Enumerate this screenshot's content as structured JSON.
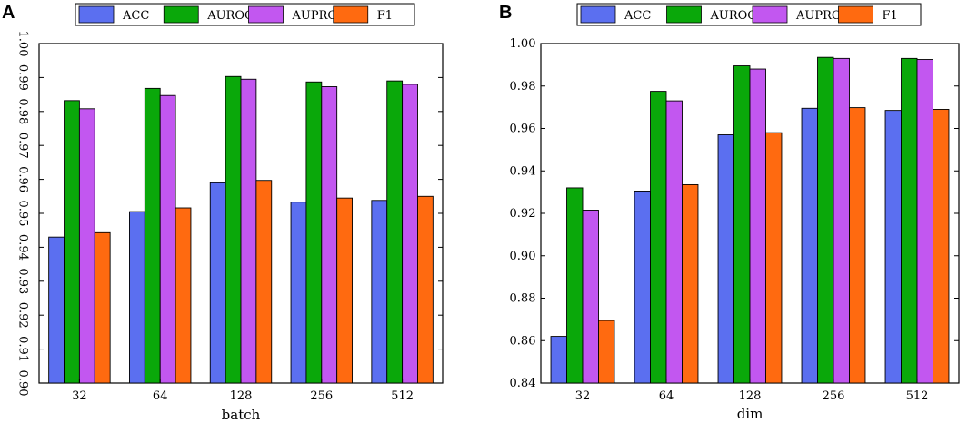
{
  "chart_data": [
    {
      "type": "bar",
      "panel": "A",
      "categories": [
        "32",
        "64",
        "128",
        "256",
        "512"
      ],
      "series": [
        {
          "name": "ACC",
          "color": "#5b6ff0",
          "values": [
            0.943,
            0.9505,
            0.959,
            0.9533,
            0.9538
          ]
        },
        {
          "name": "AUROC",
          "color": "#0aa80a",
          "values": [
            0.9832,
            0.9868,
            0.9903,
            0.9887,
            0.989
          ]
        },
        {
          "name": "AUPRC",
          "color": "#c257f0",
          "values": [
            0.9808,
            0.9847,
            0.9895,
            0.9873,
            0.988
          ]
        },
        {
          "name": "F1",
          "color": "#ff6a10",
          "values": [
            0.9443,
            0.9516,
            0.9597,
            0.9545,
            0.955
          ]
        }
      ],
      "xlabel": "batch",
      "ylabel": "",
      "ylim": [
        0.9,
        1.0
      ],
      "yticks": [
        "0.90",
        "0.91",
        "0.92",
        "0.93",
        "0.94",
        "0.95",
        "0.96",
        "0.97",
        "0.98",
        "0.99",
        "1.00"
      ],
      "legend": "top"
    },
    {
      "type": "bar",
      "panel": "B",
      "categories": [
        "32",
        "64",
        "128",
        "256",
        "512"
      ],
      "series": [
        {
          "name": "ACC",
          "color": "#5b6ff0",
          "values": [
            0.862,
            0.9305,
            0.957,
            0.9695,
            0.9685
          ]
        },
        {
          "name": "AUROC",
          "color": "#0aa80a",
          "values": [
            0.932,
            0.9775,
            0.9895,
            0.9935,
            0.993
          ]
        },
        {
          "name": "AUPRC",
          "color": "#c257f0",
          "values": [
            0.9215,
            0.973,
            0.988,
            0.993,
            0.9925
          ]
        },
        {
          "name": "F1",
          "color": "#ff6a10",
          "values": [
            0.8695,
            0.9335,
            0.958,
            0.9698,
            0.969
          ]
        }
      ],
      "xlabel": "dim",
      "ylabel": "",
      "ylim": [
        0.84,
        1.0
      ],
      "yticks": [
        "0.84",
        "0.86",
        "0.88",
        "0.90",
        "0.92",
        "0.94",
        "0.96",
        "0.98",
        "1.00"
      ],
      "legend": "top"
    }
  ]
}
